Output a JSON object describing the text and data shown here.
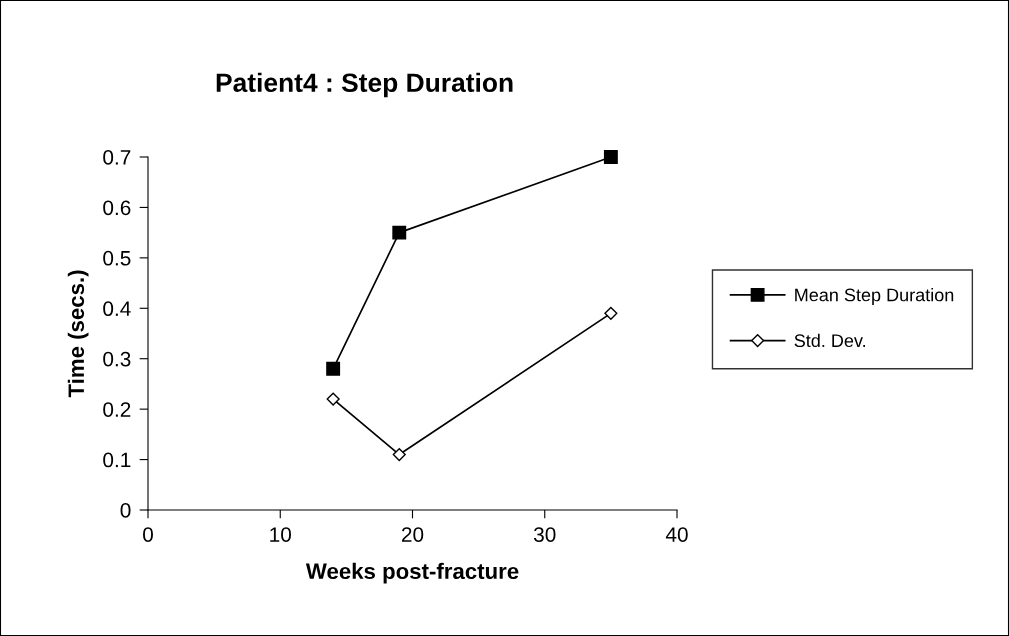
{
  "chart_data": {
    "type": "line",
    "title": "Patient4 : Step Duration",
    "xlabel": "Weeks post-fracture",
    "ylabel": "Time (secs.)",
    "x": [
      14,
      19,
      35
    ],
    "series": [
      {
        "name": "Mean Step Duration",
        "color": "#000000",
        "marker": "square",
        "values": [
          0.28,
          0.55,
          0.7
        ]
      },
      {
        "name": "Std. Dev.",
        "color": "#000000",
        "marker": "diamond",
        "values": [
          0.22,
          0.11,
          0.39
        ]
      }
    ],
    "xlim": [
      0,
      40
    ],
    "xticks": [
      0,
      10,
      20,
      30,
      40
    ],
    "ylim": [
      0,
      0.7
    ],
    "yticks": [
      0,
      0.1,
      0.2,
      0.3,
      0.4,
      0.5,
      0.6,
      0.7
    ],
    "grid": false,
    "legend": "right",
    "line_style": "solid"
  }
}
